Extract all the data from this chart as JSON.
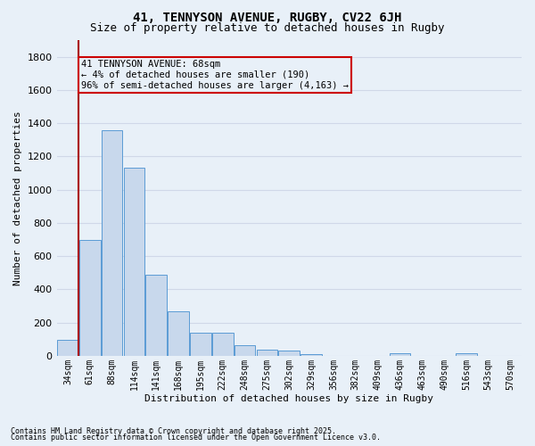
{
  "title1": "41, TENNYSON AVENUE, RUGBY, CV22 6JH",
  "title2": "Size of property relative to detached houses in Rugby",
  "xlabel": "Distribution of detached houses by size in Rugby",
  "ylabel": "Number of detached properties",
  "bar_color": "#c8d8ec",
  "bar_edge_color": "#5b9bd5",
  "background_color": "#e8f0f8",
  "grid_color": "#d0d8e8",
  "categories": [
    "34sqm",
    "61sqm",
    "88sqm",
    "114sqm",
    "141sqm",
    "168sqm",
    "195sqm",
    "222sqm",
    "248sqm",
    "275sqm",
    "302sqm",
    "329sqm",
    "356sqm",
    "382sqm",
    "409sqm",
    "436sqm",
    "463sqm",
    "490sqm",
    "516sqm",
    "543sqm",
    "570sqm"
  ],
  "values": [
    95,
    700,
    1360,
    1130,
    490,
    270,
    140,
    140,
    65,
    35,
    32,
    10,
    0,
    0,
    0,
    15,
    0,
    0,
    15,
    0,
    0
  ],
  "ylim": [
    0,
    1900
  ],
  "yticks": [
    0,
    200,
    400,
    600,
    800,
    1000,
    1200,
    1400,
    1600,
    1800
  ],
  "vline_color": "#aa0000",
  "annotation_text": "41 TENNYSON AVENUE: 68sqm\n← 4% of detached houses are smaller (190)\n96% of semi-detached houses are larger (4,163) →",
  "box_color": "#cc0000",
  "footnote1": "Contains HM Land Registry data © Crown copyright and database right 2025.",
  "footnote2": "Contains public sector information licensed under the Open Government Licence v3.0."
}
